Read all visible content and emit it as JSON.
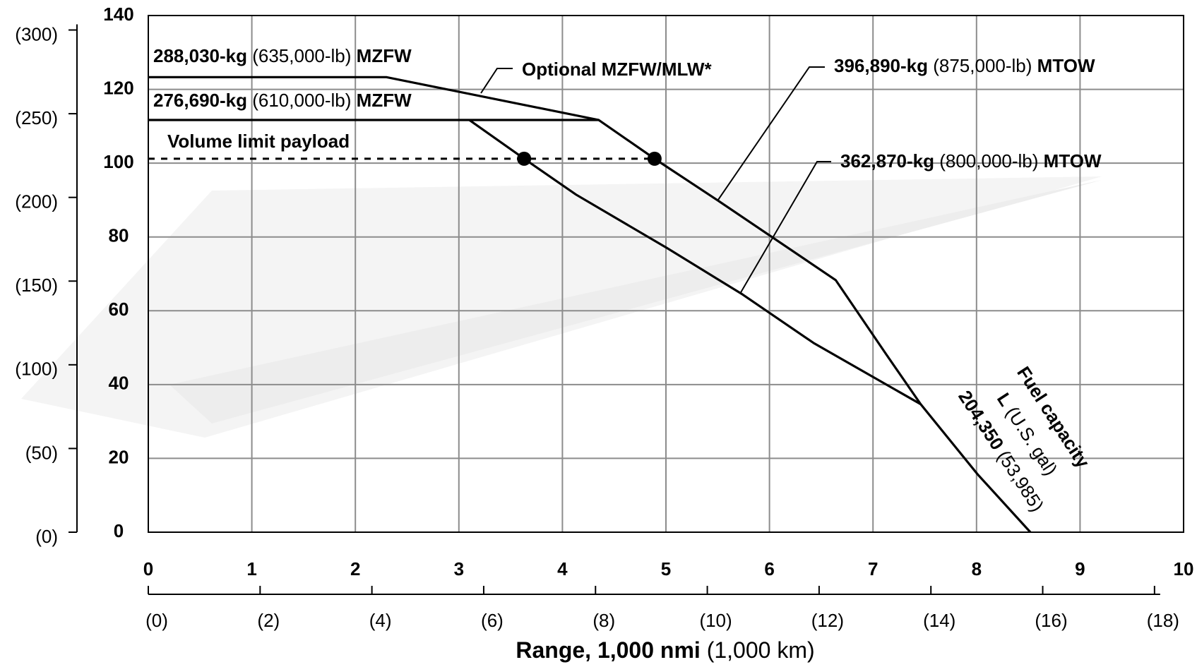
{
  "chart_data": {
    "type": "line",
    "xlim": [
      0,
      10
    ],
    "ylim": [
      0,
      140
    ],
    "xticks": [
      0,
      1,
      2,
      3,
      4,
      5,
      6,
      7,
      8,
      9,
      10
    ],
    "yticks": [
      0,
      20,
      40,
      60,
      80,
      100,
      120,
      140
    ],
    "x2lim": [
      0,
      18.52
    ],
    "x2ticks": [
      {
        "value": 0,
        "label": "(0)"
      },
      {
        "value": 2,
        "label": "(2)"
      },
      {
        "value": 4,
        "label": "(4)"
      },
      {
        "value": 6,
        "label": "(6)"
      },
      {
        "value": 8,
        "label": "(8)"
      },
      {
        "value": 10,
        "label": "(10)"
      },
      {
        "value": 12,
        "label": "(12)"
      },
      {
        "value": 14,
        "label": "(14)"
      },
      {
        "value": 16,
        "label": "(16)"
      },
      {
        "value": 18,
        "label": "(18)"
      }
    ],
    "y2lim": [
      0,
      308.65
    ],
    "y2ticks": [
      {
        "value": 0,
        "label": "(0)"
      },
      {
        "value": 50,
        "label": "(50)"
      },
      {
        "value": 100,
        "label": "(100)"
      },
      {
        "value": 150,
        "label": "(150)"
      },
      {
        "value": 200,
        "label": "(200)"
      },
      {
        "value": 250,
        "label": "(250)"
      },
      {
        "value": 300,
        "label": "(300)"
      }
    ],
    "grid": true,
    "xlabel": [
      "Range, 1,000 nmi",
      "(1,000 km)"
    ],
    "series": [
      {
        "color": "#000000",
        "x": [
          0,
          2.3,
          4.35,
          4.89,
          5.49,
          6.64,
          7.13,
          7.46,
          8.01,
          8.52
        ],
        "values": [
          123.3,
          123.3,
          111.7,
          101.2,
          90.1,
          68.3,
          48.1,
          34.7,
          15.7,
          0
        ]
      },
      {
        "color": "#000000",
        "x": [
          0,
          4.35
        ],
        "values": [
          111.7,
          111.7
        ]
      },
      {
        "color": "#000000",
        "x": [
          3.1,
          3.63,
          4.13,
          5.01,
          5.73,
          6.43,
          7.46
        ],
        "values": [
          111.7,
          101.2,
          91.5,
          77,
          64.6,
          51.2,
          34.7
        ]
      },
      {
        "color": "#000000",
        "dashed": true,
        "x": [
          0,
          4.89
        ],
        "values": [
          101.2,
          101.2
        ]
      }
    ],
    "markers": {
      "color": "#000000",
      "x": [
        3.63,
        4.89
      ],
      "values": [
        101.2,
        101.2
      ]
    },
    "annotations": [
      [
        "288,030-kg",
        "(635,000-lb)",
        "MZFW"
      ],
      [
        "276,690-kg",
        "(610,000-lb)",
        "MZFW"
      ],
      [
        "Volume limit payload"
      ],
      [
        "Optional MZFW/MLW*"
      ],
      [
        "396,890-kg",
        "(875,000-lb)",
        "MTOW"
      ],
      [
        "362,870-kg",
        "(800,000-lb)",
        "MTOW"
      ],
      [
        "Fuel capacity"
      ],
      [
        "L",
        "(U.S. gal)"
      ],
      [
        "204,350",
        "(53,985)"
      ]
    ]
  }
}
